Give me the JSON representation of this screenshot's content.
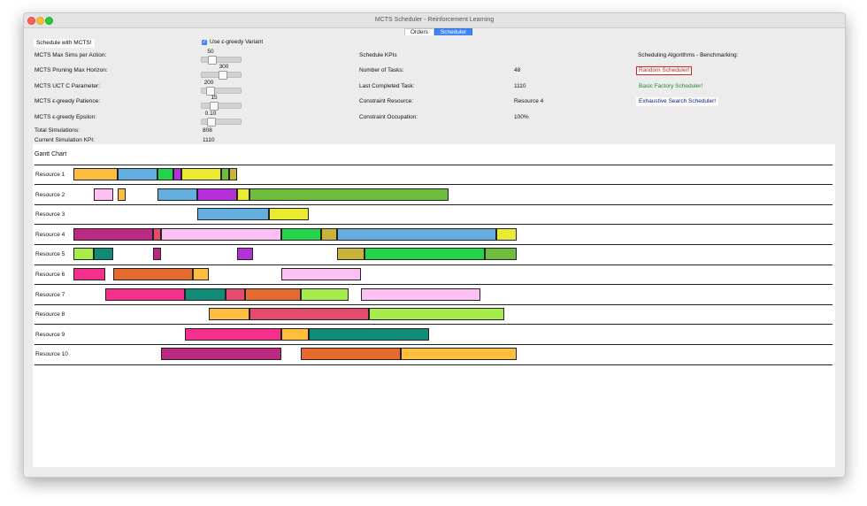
{
  "window": {
    "title": "MCTS Scheduler - Reinforcement Learning"
  },
  "tabs": [
    {
      "label": "Orders"
    },
    {
      "label": "Scheduler"
    }
  ],
  "controls": {
    "schedule_button": "Schedule with MCTS!",
    "egreedy_label": "Use ϵ-greedy Variant",
    "egreedy_checked": true,
    "sliders": [
      {
        "label": "MCTS Max Sims per Action:",
        "value": "50",
        "fraction": 0.2
      },
      {
        "label": "MCTS Pruning Max Horizon:",
        "value": "300",
        "fraction": 0.55
      },
      {
        "label": "MCTS UCT C Parameter:",
        "value": "200",
        "fraction": 0.15
      },
      {
        "label": "MCTS ϵ-greedy Patience:",
        "value": "15",
        "fraction": 0.25
      },
      {
        "label": "MCTS ϵ-greedy Epsilon:",
        "value": "0.10",
        "fraction": 0.18
      }
    ],
    "total_simulations_label": "Total Simulations:",
    "total_simulations_value": "808",
    "current_kpi_label": "Current Simulation KPI:",
    "current_kpi_value": "1110"
  },
  "kpis": {
    "title": "Schedule KPIs",
    "items": [
      {
        "label": "Number of Tasks:",
        "value": "48"
      },
      {
        "label": "Last Completed Task:",
        "value": "1110"
      },
      {
        "label": "Constraint Resource:",
        "value": "Resource 4"
      },
      {
        "label": "Constraint Occupation:",
        "value": "100%"
      }
    ]
  },
  "benchmark": {
    "title": "Scheduling Algorithms - Benchmarking:",
    "buttons": [
      {
        "label": "Random Scheduler!"
      },
      {
        "label": "Basic Factory Scheduler!"
      },
      {
        "label": "Exhaustive Search Scheduler!"
      }
    ]
  },
  "gantt": {
    "title": "Gantt Chart",
    "time_max": 1110,
    "rows": [
      {
        "label": "Resource 1",
        "tasks": [
          {
            "start": 0,
            "end": 110,
            "color": "#fdbd3e"
          },
          {
            "start": 110,
            "end": 210,
            "color": "#64aee0"
          },
          {
            "start": 210,
            "end": 250,
            "color": "#23d44b"
          },
          {
            "start": 250,
            "end": 270,
            "color": "#b530d8"
          },
          {
            "start": 270,
            "end": 370,
            "color": "#eaea33"
          },
          {
            "start": 370,
            "end": 390,
            "color": "#6fbd3e"
          },
          {
            "start": 390,
            "end": 410,
            "color": "#c8b43a"
          }
        ]
      },
      {
        "label": "Resource 2",
        "tasks": [
          {
            "start": 50,
            "end": 100,
            "color": "#fdc0f2"
          },
          {
            "start": 110,
            "end": 130,
            "color": "#fdbd3e"
          },
          {
            "start": 210,
            "end": 310,
            "color": "#64aee0"
          },
          {
            "start": 310,
            "end": 410,
            "color": "#b530d8"
          },
          {
            "start": 410,
            "end": 440,
            "color": "#eaea33"
          },
          {
            "start": 440,
            "end": 940,
            "color": "#6fbd3e"
          }
        ]
      },
      {
        "label": "Resource 3",
        "tasks": [
          {
            "start": 310,
            "end": 490,
            "color": "#64aee0"
          },
          {
            "start": 490,
            "end": 590,
            "color": "#eaea33"
          }
        ]
      },
      {
        "label": "Resource 4",
        "tasks": [
          {
            "start": 0,
            "end": 200,
            "color": "#bb2a82"
          },
          {
            "start": 200,
            "end": 220,
            "color": "#e44b6a"
          },
          {
            "start": 220,
            "end": 520,
            "color": "#fdc0f2"
          },
          {
            "start": 520,
            "end": 620,
            "color": "#23d44b"
          },
          {
            "start": 620,
            "end": 660,
            "color": "#c8b43a"
          },
          {
            "start": 660,
            "end": 1060,
            "color": "#64aee0"
          },
          {
            "start": 1060,
            "end": 1110,
            "color": "#eaea33"
          }
        ]
      },
      {
        "label": "Resource 5",
        "tasks": [
          {
            "start": 0,
            "end": 50,
            "color": "#a8ec4c"
          },
          {
            "start": 50,
            "end": 100,
            "color": "#108b77"
          },
          {
            "start": 200,
            "end": 220,
            "color": "#bb2a82"
          },
          {
            "start": 410,
            "end": 450,
            "color": "#b530d8"
          },
          {
            "start": 660,
            "end": 730,
            "color": "#c8b43a"
          },
          {
            "start": 730,
            "end": 1030,
            "color": "#23d44b"
          },
          {
            "start": 1030,
            "end": 1110,
            "color": "#6fbd3e"
          }
        ]
      },
      {
        "label": "Resource 6",
        "tasks": [
          {
            "start": 0,
            "end": 80,
            "color": "#f52f8c"
          },
          {
            "start": 100,
            "end": 300,
            "color": "#e56a2d"
          },
          {
            "start": 300,
            "end": 340,
            "color": "#fdbd3e"
          },
          {
            "start": 520,
            "end": 720,
            "color": "#fdc0f2"
          }
        ]
      },
      {
        "label": "Resource 7",
        "tasks": [
          {
            "start": 80,
            "end": 280,
            "color": "#f52f8c"
          },
          {
            "start": 280,
            "end": 380,
            "color": "#108b77"
          },
          {
            "start": 380,
            "end": 430,
            "color": "#e44b6a"
          },
          {
            "start": 430,
            "end": 570,
            "color": "#e56a2d"
          },
          {
            "start": 570,
            "end": 690,
            "color": "#a8ec4c"
          },
          {
            "start": 720,
            "end": 1020,
            "color": "#fdc0f2"
          }
        ]
      },
      {
        "label": "Resource 8",
        "tasks": [
          {
            "start": 340,
            "end": 440,
            "color": "#fdbd3e"
          },
          {
            "start": 440,
            "end": 740,
            "color": "#e44b6a"
          },
          {
            "start": 740,
            "end": 1080,
            "color": "#a8ec4c"
          }
        ]
      },
      {
        "label": "Resource 9",
        "tasks": [
          {
            "start": 280,
            "end": 520,
            "color": "#f52f8c"
          },
          {
            "start": 520,
            "end": 590,
            "color": "#fdbd3e"
          },
          {
            "start": 590,
            "end": 890,
            "color": "#108b77"
          }
        ]
      },
      {
        "label": "Resource 10",
        "tasks": [
          {
            "start": 220,
            "end": 520,
            "color": "#bb2a82"
          },
          {
            "start": 570,
            "end": 820,
            "color": "#e56a2d"
          },
          {
            "start": 820,
            "end": 1110,
            "color": "#fdbd3e"
          }
        ]
      }
    ]
  }
}
